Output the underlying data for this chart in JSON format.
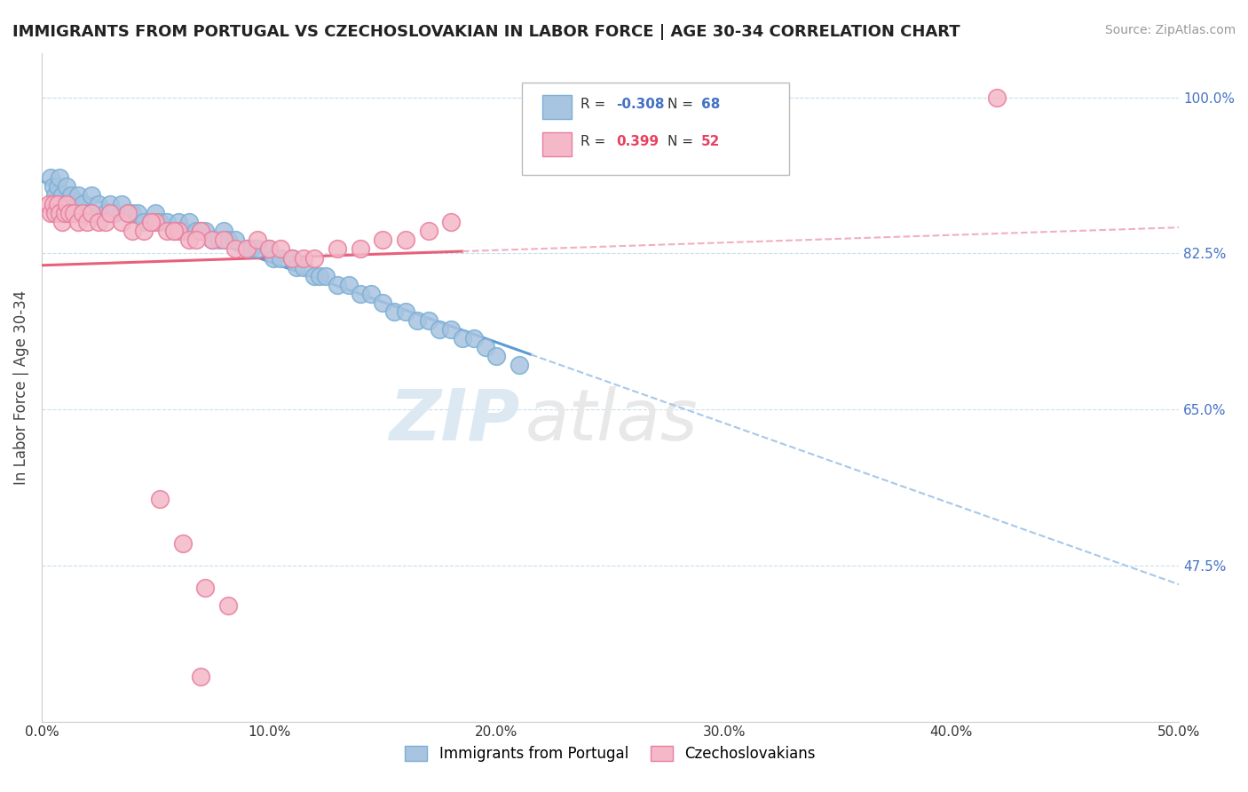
{
  "title": "IMMIGRANTS FROM PORTUGAL VS CZECHOSLOVAKIAN IN LABOR FORCE | AGE 30-34 CORRELATION CHART",
  "source": "Source: ZipAtlas.com",
  "ylabel": "In Labor Force | Age 30-34",
  "xlim": [
    0.0,
    50.0
  ],
  "ylim": [
    30.0,
    105.0
  ],
  "yticks_right": [
    47.5,
    65.0,
    82.5,
    100.0
  ],
  "xticks": [
    0.0,
    10.0,
    20.0,
    30.0,
    40.0,
    50.0
  ],
  "legend_r_blue": "-0.308",
  "legend_n_blue": "68",
  "legend_r_pink": "0.399",
  "legend_n_pink": "52",
  "blue_color": "#a8c4e0",
  "blue_edge": "#7aafd4",
  "pink_color": "#f4b8c8",
  "pink_edge": "#e87fa0",
  "blue_line_color": "#5b9bd5",
  "pink_line_color": "#e8607a",
  "dashed_line_color": "#a8c8e8",
  "watermark_zip": "ZIP",
  "watermark_atlas": "atlas",
  "blue_scatter_x": [
    0.4,
    0.5,
    0.6,
    0.7,
    0.8,
    0.9,
    1.0,
    1.1,
    1.2,
    1.3,
    1.5,
    1.6,
    1.8,
    2.0,
    2.2,
    2.5,
    2.8,
    3.0,
    3.2,
    3.5,
    3.8,
    4.0,
    4.2,
    4.5,
    4.8,
    5.0,
    5.2,
    5.5,
    5.8,
    6.0,
    6.2,
    6.5,
    6.8,
    7.0,
    7.2,
    7.5,
    7.8,
    8.0,
    8.2,
    8.5,
    9.0,
    9.2,
    9.5,
    10.0,
    10.2,
    10.5,
    11.0,
    11.2,
    11.5,
    12.0,
    12.2,
    12.5,
    13.0,
    13.5,
    14.0,
    14.5,
    15.0,
    15.5,
    16.0,
    16.5,
    17.0,
    17.5,
    18.0,
    18.5,
    19.0,
    19.5,
    20.0,
    21.0
  ],
  "blue_scatter_y": [
    91,
    90,
    89,
    90,
    91,
    89,
    88,
    90,
    88,
    89,
    87,
    89,
    88,
    87,
    89,
    88,
    87,
    88,
    87,
    88,
    87,
    87,
    87,
    86,
    86,
    87,
    86,
    86,
    85,
    86,
    85,
    86,
    85,
    85,
    85,
    84,
    84,
    85,
    84,
    84,
    83,
    83,
    83,
    83,
    82,
    82,
    82,
    81,
    81,
    80,
    80,
    80,
    79,
    79,
    78,
    78,
    77,
    76,
    76,
    75,
    75,
    74,
    74,
    73,
    73,
    72,
    71,
    70
  ],
  "pink_scatter_x": [
    0.3,
    0.4,
    0.5,
    0.6,
    0.7,
    0.8,
    0.9,
    1.0,
    1.1,
    1.2,
    1.4,
    1.6,
    1.8,
    2.0,
    2.2,
    2.5,
    2.8,
    3.0,
    3.5,
    4.0,
    4.5,
    5.0,
    5.5,
    6.0,
    6.5,
    7.0,
    7.5,
    8.0,
    8.5,
    9.0,
    9.5,
    10.0,
    10.5,
    11.0,
    11.5,
    12.0,
    13.0,
    14.0,
    15.0,
    16.0,
    17.0,
    18.0,
    5.2,
    6.2,
    7.2,
    8.2,
    3.8,
    4.8,
    5.8,
    6.8,
    7.0,
    42.0
  ],
  "pink_scatter_y": [
    88,
    87,
    88,
    87,
    88,
    87,
    86,
    87,
    88,
    87,
    87,
    86,
    87,
    86,
    87,
    86,
    86,
    87,
    86,
    85,
    85,
    86,
    85,
    85,
    84,
    85,
    84,
    84,
    83,
    83,
    84,
    83,
    83,
    82,
    82,
    82,
    83,
    83,
    84,
    84,
    85,
    86,
    55,
    50,
    45,
    43,
    87,
    86,
    85,
    84,
    35,
    100
  ]
}
